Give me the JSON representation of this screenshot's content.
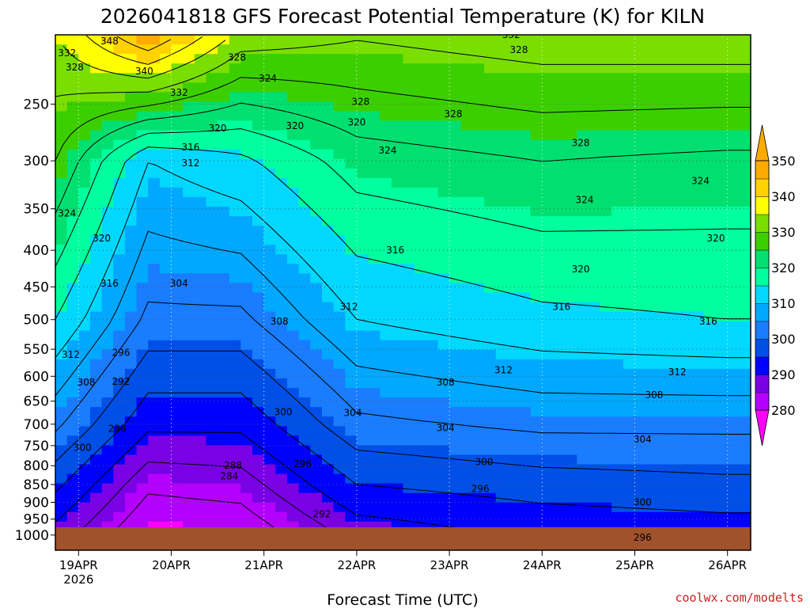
{
  "title": "2026041818 GFS Forecast Potential Temperature (K) for KILN",
  "xlabel": "Forecast Time (UTC)",
  "credit": "coolwx.com/modelts",
  "colors": {
    "bands": [
      "#ff00ff",
      "#b300ff",
      "#7a00e6",
      "#0000ff",
      "#0050e8",
      "#1a7cff",
      "#00a8ff",
      "#00d8ff",
      "#00ff9f",
      "#00e070",
      "#3ccf00",
      "#7adf00",
      "#ffff00",
      "#ffd200",
      "#ffaa00"
    ],
    "ground": "#a0522d",
    "credit": "#c81e1e"
  },
  "chart_data": {
    "type": "heatmap",
    "title": "2026041818 GFS Forecast Potential Temperature (K) for KILN",
    "xlabel": "Forecast Time (UTC)",
    "ylabel": "",
    "x_ticks": [
      "19APR",
      "20APR",
      "21APR",
      "22APR",
      "23APR",
      "24APR",
      "25APR",
      "26APR"
    ],
    "x_ticks_hours": [
      6,
      30,
      54,
      78,
      102,
      126,
      150,
      174
    ],
    "x_year_label": "2026",
    "xlim_hours": [
      0,
      180
    ],
    "y_ticks": [
      250,
      300,
      350,
      400,
      450,
      500,
      550,
      600,
      650,
      700,
      750,
      800,
      850,
      900,
      950,
      1000
    ],
    "y_scale": "log",
    "ylim_hpa": [
      1050,
      200
    ],
    "colorbar_ticks": [
      280,
      290,
      300,
      310,
      320,
      330,
      340,
      350
    ],
    "colorbar_extends": "both",
    "contour_interval_K": 4,
    "surface_pressure_hpa": 975,
    "sample_points": [
      {
        "hour": 0,
        "values": [
          {
            "p": 960,
            "theta": 292
          },
          {
            "p": 850,
            "theta": 297
          },
          {
            "p": 700,
            "theta": 305
          },
          {
            "p": 500,
            "theta": 316
          },
          {
            "p": 300,
            "theta": 328
          },
          {
            "p": 220,
            "theta": 334
          }
        ]
      },
      {
        "hour": 24,
        "values": [
          {
            "p": 960,
            "theta": 281
          },
          {
            "p": 850,
            "theta": 285
          },
          {
            "p": 700,
            "theta": 293
          },
          {
            "p": 500,
            "theta": 303
          },
          {
            "p": 300,
            "theta": 312
          },
          {
            "p": 220,
            "theta": 340
          }
        ]
      },
      {
        "hour": 48,
        "values": [
          {
            "p": 960,
            "theta": 282
          },
          {
            "p": 850,
            "theta": 286
          },
          {
            "p": 700,
            "theta": 293
          },
          {
            "p": 500,
            "theta": 303
          },
          {
            "p": 300,
            "theta": 315
          },
          {
            "p": 220,
            "theta": 330
          }
        ]
      },
      {
        "hour": 78,
        "values": [
          {
            "p": 960,
            "theta": 291
          },
          {
            "p": 850,
            "theta": 296
          },
          {
            "p": 700,
            "theta": 303
          },
          {
            "p": 500,
            "theta": 312
          },
          {
            "p": 300,
            "theta": 322
          },
          {
            "p": 220,
            "theta": 330
          }
        ]
      },
      {
        "hour": 126,
        "values": [
          {
            "p": 960,
            "theta": 294
          },
          {
            "p": 850,
            "theta": 298
          },
          {
            "p": 700,
            "theta": 305
          },
          {
            "p": 500,
            "theta": 315
          },
          {
            "p": 300,
            "theta": 324
          },
          {
            "p": 220,
            "theta": 332
          }
        ]
      },
      {
        "hour": 174,
        "values": [
          {
            "p": 960,
            "theta": 295
          },
          {
            "p": 850,
            "theta": 299
          },
          {
            "p": 700,
            "theta": 305
          },
          {
            "p": 500,
            "theta": 316
          },
          {
            "p": 300,
            "theta": 323
          },
          {
            "p": 220,
            "theta": 332
          }
        ]
      }
    ],
    "contour_labels": [
      {
        "text": "332",
        "hour": 3,
        "p": 212
      },
      {
        "text": "328",
        "hour": 5,
        "p": 222
      },
      {
        "text": "348",
        "hour": 14,
        "p": 204
      },
      {
        "text": "340",
        "hour": 23,
        "p": 225
      },
      {
        "text": "332",
        "hour": 32,
        "p": 241
      },
      {
        "text": "328",
        "hour": 47,
        "p": 215
      },
      {
        "text": "324",
        "hour": 55,
        "p": 230
      },
      {
        "text": "316",
        "hour": 35,
        "p": 287
      },
      {
        "text": "312",
        "hour": 35,
        "p": 302
      },
      {
        "text": "320",
        "hour": 42,
        "p": 270
      },
      {
        "text": "320",
        "hour": 62,
        "p": 268
      },
      {
        "text": "328",
        "hour": 79,
        "p": 248
      },
      {
        "text": "320",
        "hour": 78,
        "p": 265
      },
      {
        "text": "324",
        "hour": 86,
        "p": 290
      },
      {
        "text": "332",
        "hour": 118,
        "p": 200
      },
      {
        "text": "328",
        "hour": 120,
        "p": 210
      },
      {
        "text": "328",
        "hour": 103,
        "p": 258
      },
      {
        "text": "328",
        "hour": 136,
        "p": 283
      },
      {
        "text": "324",
        "hour": 3,
        "p": 355
      },
      {
        "text": "320",
        "hour": 12,
        "p": 385
      },
      {
        "text": "316",
        "hour": 14,
        "p": 445
      },
      {
        "text": "304",
        "hour": 32,
        "p": 445
      },
      {
        "text": "324",
        "hour": 137,
        "p": 340
      },
      {
        "text": "324",
        "hour": 167,
        "p": 320
      },
      {
        "text": "320",
        "hour": 171,
        "p": 385
      },
      {
        "text": "316",
        "hour": 88,
        "p": 400
      },
      {
        "text": "312",
        "hour": 76,
        "p": 480
      },
      {
        "text": "308",
        "hour": 58,
        "p": 503
      },
      {
        "text": "320",
        "hour": 136,
        "p": 425
      },
      {
        "text": "316",
        "hour": 131,
        "p": 480
      },
      {
        "text": "316",
        "hour": 169,
        "p": 503
      },
      {
        "text": "312",
        "hour": 4,
        "p": 560
      },
      {
        "text": "296",
        "hour": 17,
        "p": 556
      },
      {
        "text": "292",
        "hour": 17,
        "p": 610
      },
      {
        "text": "308",
        "hour": 8,
        "p": 612
      },
      {
        "text": "312",
        "hour": 116,
        "p": 588
      },
      {
        "text": "312",
        "hour": 161,
        "p": 592
      },
      {
        "text": "308",
        "hour": 101,
        "p": 612
      },
      {
        "text": "308",
        "hour": 155,
        "p": 637
      },
      {
        "text": "300",
        "hour": 59,
        "p": 673
      },
      {
        "text": "304",
        "hour": 77,
        "p": 675
      },
      {
        "text": "304",
        "hour": 101,
        "p": 708
      },
      {
        "text": "304",
        "hour": 152,
        "p": 735
      },
      {
        "text": "288",
        "hour": 16,
        "p": 710
      },
      {
        "text": "300",
        "hour": 7,
        "p": 755
      },
      {
        "text": "300",
        "hour": 111,
        "p": 790
      },
      {
        "text": "296",
        "hour": 64,
        "p": 795
      },
      {
        "text": "288",
        "hour": 46,
        "p": 800
      },
      {
        "text": "284",
        "hour": 45,
        "p": 828
      },
      {
        "text": "296",
        "hour": 110,
        "p": 862
      },
      {
        "text": "300",
        "hour": 152,
        "p": 900
      },
      {
        "text": "292",
        "hour": 69,
        "p": 935
      },
      {
        "text": "296",
        "hour": 152,
        "p": 1008
      }
    ]
  }
}
